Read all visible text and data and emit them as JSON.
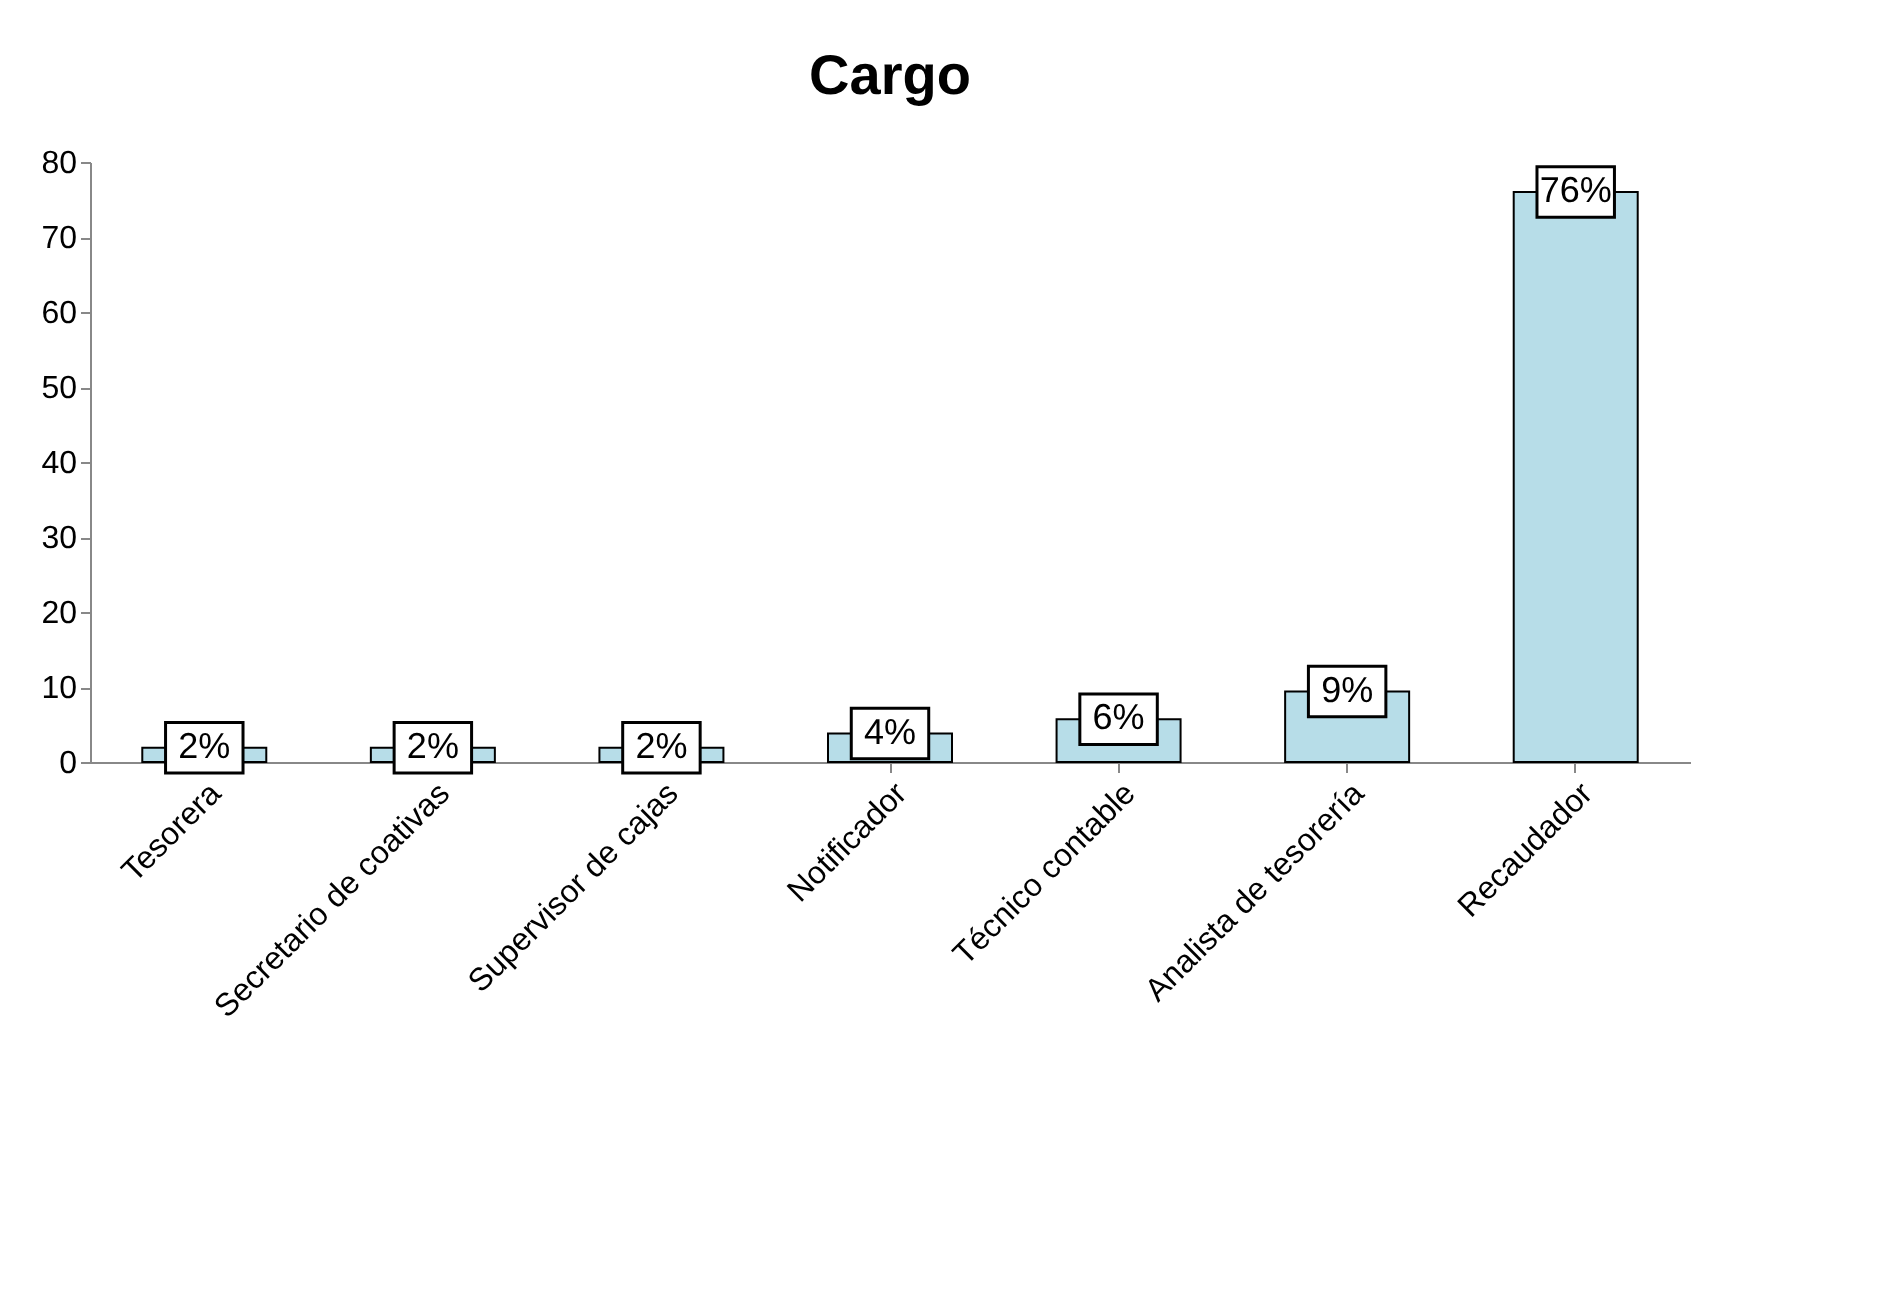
{
  "chart_data": {
    "type": "bar",
    "title": "Cargo",
    "categories": [
      "Tesorera",
      "Secretario de coativas",
      "Supervisor de cajas",
      "Notificador",
      "Técnico contable",
      "Analista de tesorería",
      "Recaudador"
    ],
    "values": [
      1.9,
      1.9,
      1.9,
      3.8,
      5.7,
      9.4,
      76
    ],
    "value_labels": [
      "2%",
      "2%",
      "2%",
      "4%",
      "6%",
      "9%",
      "76%"
    ],
    "color": "#b7dde8",
    "ylim": [
      0,
      80
    ],
    "yticks": [
      0,
      10,
      20,
      30,
      40,
      50,
      60,
      70,
      80
    ],
    "grid": false
  }
}
